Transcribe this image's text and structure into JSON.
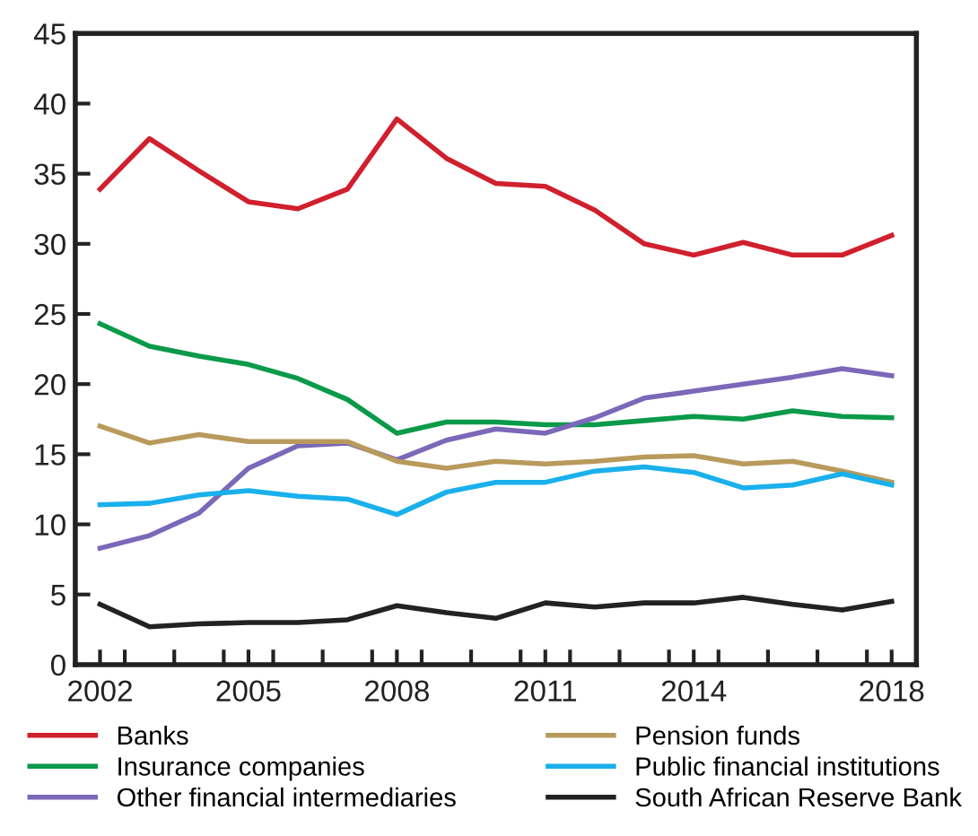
{
  "chart_data": {
    "type": "line",
    "x": [
      2002,
      2003,
      2004,
      2005,
      2006,
      2007,
      2008,
      2009,
      2010,
      2011,
      2012,
      2013,
      2014,
      2015,
      2016,
      2017,
      2018
    ],
    "series": [
      {
        "name": "Banks",
        "color": "#d0202e",
        "values": [
          33.9,
          37.5,
          35.2,
          33.0,
          32.5,
          33.9,
          38.9,
          36.1,
          34.3,
          34.1,
          32.4,
          30.0,
          29.2,
          30.1,
          29.2,
          29.2,
          30.6
        ]
      },
      {
        "name": "Insurance companies",
        "color": "#0a9a4a",
        "values": [
          24.3,
          22.7,
          22.0,
          21.4,
          20.4,
          18.9,
          16.5,
          17.3,
          17.3,
          17.1,
          17.1,
          17.4,
          17.7,
          17.5,
          18.1,
          17.7,
          17.6
        ]
      },
      {
        "name": "Other financial intermediaries",
        "color": "#7b68b8",
        "values": [
          8.3,
          9.2,
          10.8,
          14.0,
          15.6,
          15.8,
          14.6,
          16.0,
          16.8,
          16.5,
          17.6,
          19.0,
          19.5,
          20.0,
          20.5,
          21.1,
          20.6
        ]
      },
      {
        "name": "Pension funds",
        "color": "#b89a5c",
        "values": [
          17.0,
          15.8,
          16.4,
          15.9,
          15.9,
          15.9,
          14.5,
          14.0,
          14.5,
          14.3,
          14.5,
          14.8,
          14.9,
          14.3,
          14.5,
          13.8,
          13.0
        ]
      },
      {
        "name": "Public financial institutions",
        "color": "#1ab0ec",
        "values": [
          11.4,
          11.5,
          12.1,
          12.4,
          12.0,
          11.8,
          10.7,
          12.3,
          13.0,
          13.0,
          13.8,
          14.1,
          13.7,
          12.6,
          12.8,
          13.6,
          12.8
        ]
      },
      {
        "name": "South African Reserve Bank",
        "color": "#222222",
        "values": [
          4.3,
          2.7,
          2.9,
          3.0,
          3.0,
          3.2,
          4.2,
          3.7,
          3.3,
          4.4,
          4.1,
          4.4,
          4.4,
          4.8,
          4.3,
          3.9,
          4.5
        ]
      }
    ],
    "xlim": [
      2001.5,
      2018.5
    ],
    "xticks": [
      2002,
      2005,
      2008,
      2011,
      2014,
      2018,
      {
        "value": 2002.5,
        "label": null
      },
      {
        "value": 2003.5,
        "label": null
      },
      {
        "value": 2004.5,
        "label": null
      },
      {
        "value": 2005.5,
        "label": null
      },
      {
        "value": 2006.5,
        "label": null
      },
      {
        "value": 2007.5,
        "label": null
      },
      {
        "value": 2008.5,
        "label": null
      },
      {
        "value": 2009.5,
        "label": null
      },
      {
        "value": 2010.5,
        "label": null
      },
      {
        "value": 2011.5,
        "label": null
      },
      {
        "value": 2012.5,
        "label": null
      },
      {
        "value": 2013.5,
        "label": null
      },
      {
        "value": 2014.5,
        "label": null
      },
      {
        "value": 2015.5,
        "label": null
      },
      {
        "value": 2016.5,
        "label": null
      },
      {
        "value": 2017.5,
        "label": null
      }
    ],
    "ylim": [
      0,
      45
    ],
    "yticks": [
      0,
      5,
      10,
      15,
      20,
      25,
      30,
      35,
      40,
      45
    ],
    "grid": false,
    "legend": "bottom",
    "marker": "none",
    "line_style": "solid"
  }
}
